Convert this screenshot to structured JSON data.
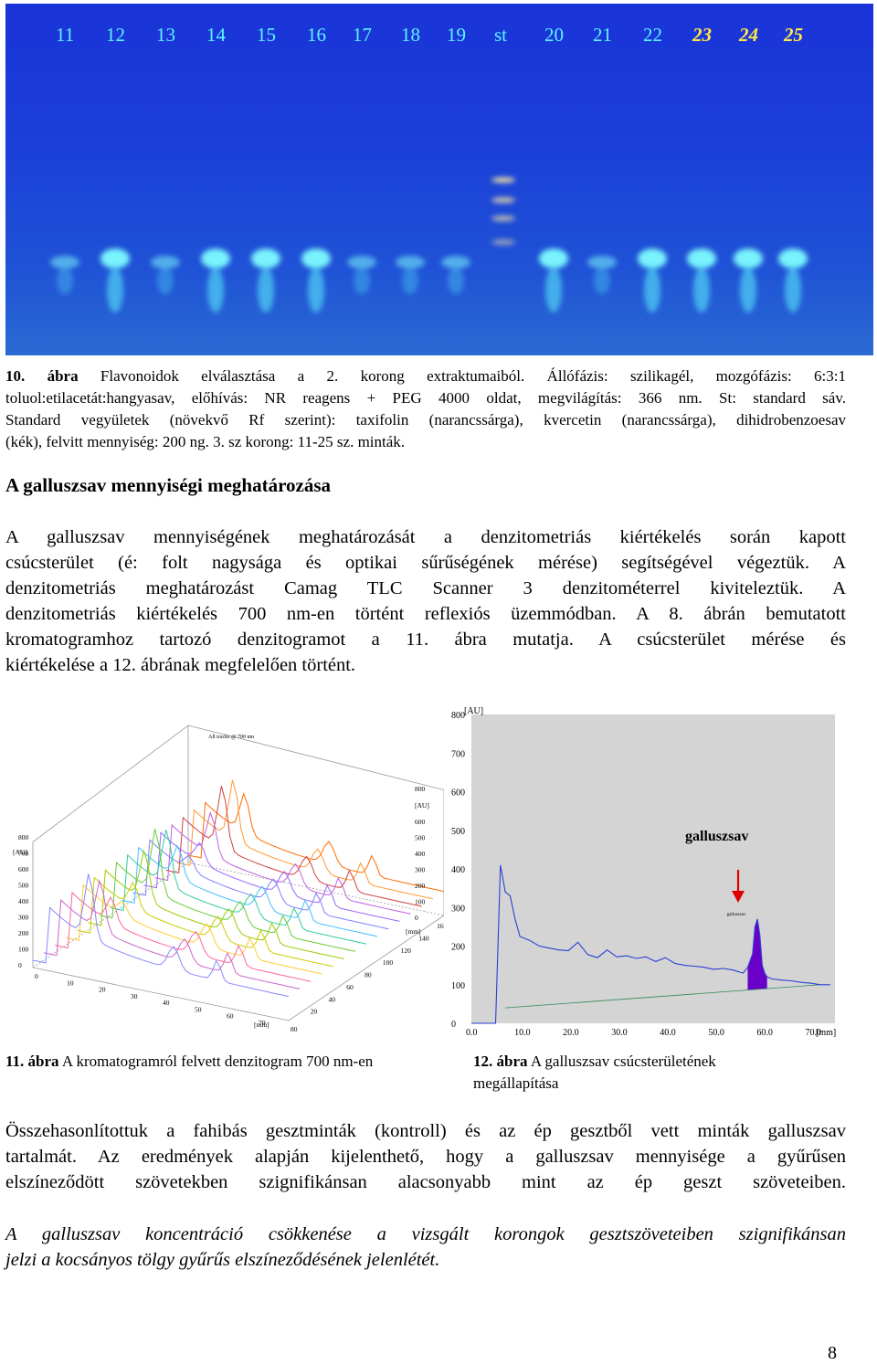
{
  "plate": {
    "lanes": [
      "11",
      "12",
      "13",
      "14",
      "15",
      "16",
      "17",
      "18",
      "19",
      "st",
      "20",
      "21",
      "22",
      "23",
      "24",
      "25"
    ],
    "background_color": "#1b3fd8",
    "spot_color": "#5ff5ff"
  },
  "caption10": {
    "label": "10. ábra",
    "line1": "Flavonoidok elválasztása a 2. korong extraktumaiból. Állófázis: szilikagél, mozgófázis: 6:3:1",
    "line2": "toluol:etilacetát:hangyasav, előhívás: NR reagens + PEG 4000 oldat, megvilágítás: 366 nm. St: standard sáv.",
    "line3": "Standard vegyületek (növekvő Rf szerint): taxifolin (narancssárga), kvercetin (narancssárga), dihidrobenzoesav",
    "line4": "(kék), felvitt mennyiség: 200 ng. 3. sz korong: 11-25 sz. minták."
  },
  "section": {
    "heading": "A galluszsav mennyiségi meghatározása",
    "p1_lines": [
      "A galluszsav mennyiségének meghatározását a denzitometriás kiértékelés során kapott",
      "csúcsterület (é: folt nagysága és optikai sűrűségének mérése) segítségével végeztük. A",
      "denzitometriás meghatározást Camag TLC Scanner 3 denzitométerrel kiviteleztük. A",
      "denzitometriás kiértékelés 700 nm-en történt reflexiós üzemmódban. A 8. ábrán bemutatott",
      "kromatogramhoz tartozó denzitogramot a 11. ábra mutatja. A csúcsterület mérése és",
      "kiértékelése a 12. ábrának megfelelően történt."
    ]
  },
  "fig11": {
    "label": "11. ábra",
    "text": "A kromatogramról felvett denzitogram 700 nm-en",
    "inner_title": "All tracks @ 700 nm",
    "unit_au": "[AU]",
    "unit_mm": "[mm]"
  },
  "fig12": {
    "label": "12. ábra",
    "text_line1": "A galluszsav csúcsterületének",
    "text_line2": "megállapítása",
    "annotation": "galluszsav",
    "small_label": "galluszsav",
    "accent_color": "#e00000",
    "fill_color": "#6a00c8"
  },
  "conclusion": {
    "p2_lines": [
      "Összehasonlítottuk a fahibás gesztminták (kontroll) és az ép gesztből vett minták galluszsav",
      "tartalmát. Az eredmények alapján kijelenthető, hogy a galluszsav mennyisége a gyűrűsen",
      "elszíneződött szövetekben szignifikánsan alacsonyabb mint az ép geszt szöveteiben."
    ],
    "p3_lines": [
      "A galluszsav koncentráció csökkenése a vizsgált korongok gesztszöveteiben szignifikánsan",
      "jelzi a kocsányos tölgy gyűrűs elszíneződésének jelenlétét."
    ]
  },
  "page_number": "8",
  "chart_data": [
    {
      "type": "line",
      "title": "All tracks @ 700 nm",
      "description_axes": {
        "y_ticks_left": [
          "0",
          "100",
          "200",
          "300",
          "400",
          "500",
          "600",
          "700",
          "800"
        ],
        "ylabel": "[AU]",
        "x_ticks": [
          "0",
          "10",
          "20",
          "30",
          "40",
          "50",
          "60",
          "70",
          "80"
        ],
        "xlabel": "[mm]",
        "z_ticks": [
          "20",
          "40",
          "60",
          "80",
          "100",
          "120",
          "140",
          "160"
        ],
        "zlabel": "[mm]",
        "y_ticks_right": [
          "0",
          "100",
          "200",
          "300",
          "400",
          "500",
          "600",
          "800"
        ]
      },
      "series_count": 15
    },
    {
      "type": "area",
      "title": "",
      "xlabel": "[mm]",
      "ylabel": "[AU]",
      "x_ticks": [
        "0.0",
        "10.0",
        "20.0",
        "30.0",
        "40.0",
        "50.0",
        "60.0",
        "70.0"
      ],
      "y_ticks": [
        "0",
        "100",
        "200",
        "300",
        "400",
        "500",
        "600",
        "700",
        "800"
      ],
      "xlim": [
        0,
        75
      ],
      "ylim": [
        0,
        800
      ],
      "x": [
        0,
        1,
        2,
        3,
        4,
        5,
        6,
        7,
        8,
        9,
        10,
        12,
        14,
        16,
        18,
        20,
        22,
        24,
        26,
        28,
        30,
        32,
        34,
        36,
        38,
        40,
        42,
        44,
        46,
        48,
        50,
        52,
        54,
        56,
        57,
        58,
        58.5,
        59,
        59.5,
        60,
        60.5,
        61,
        62,
        64,
        66,
        68,
        70,
        72,
        74
      ],
      "values": [
        0,
        0,
        0,
        0,
        0,
        0,
        410,
        340,
        330,
        270,
        225,
        215,
        200,
        195,
        190,
        188,
        210,
        178,
        170,
        190,
        172,
        175,
        168,
        172,
        160,
        170,
        155,
        150,
        148,
        145,
        140,
        142,
        138,
        130,
        145,
        180,
        250,
        270,
        230,
        150,
        130,
        120,
        115,
        112,
        110,
        106,
        104,
        100,
        100
      ],
      "peak": {
        "name": "galluszsav",
        "x_start": 57,
        "x_end": 61,
        "apex_x": 59,
        "apex_y": 270
      }
    }
  ]
}
